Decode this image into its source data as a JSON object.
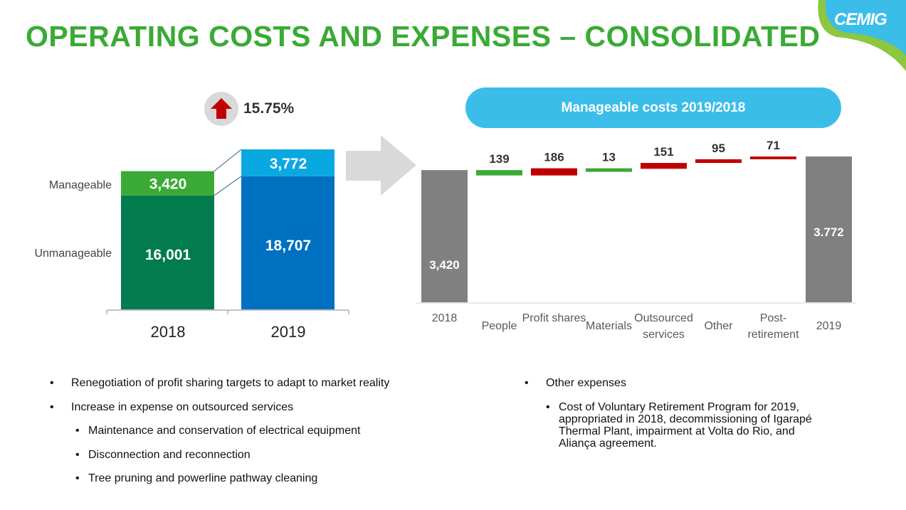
{
  "title": "OPERATING COSTS AND EXPENSES – CONSOLIDATED",
  "logo": {
    "text": "CEMIG"
  },
  "growth": {
    "value": "15.75%",
    "icon": "up-arrow-icon",
    "color": "#c00000"
  },
  "manageable_pill": "Manageable costs  2019/2018",
  "colors": {
    "title": "#3aaa35",
    "manageable_2018": "#3aaa35",
    "unmanageable_2018": "#027b4e",
    "manageable_2019": "#0aa8e0",
    "unmanageable_2019": "#0070c0",
    "increase": "#c00000",
    "decrease": "#3aaa35",
    "total": "#808080"
  },
  "chart_data": [
    {
      "type": "bar",
      "stacked": true,
      "categories": [
        "2018",
        "2019"
      ],
      "series": [
        {
          "name": "Unmanageable",
          "values": [
            16001,
            18707
          ],
          "labels": [
            "16,001",
            "18,707"
          ]
        },
        {
          "name": "Manageable",
          "values": [
            3420,
            3772
          ],
          "labels": [
            "3,420",
            "3,772"
          ]
        }
      ]
    },
    {
      "type": "bar",
      "waterfall": true,
      "categories": [
        "2018",
        "People",
        "Profit shares",
        "Materials",
        "Outsourced services",
        "Other",
        "Post-retirement",
        "2019"
      ],
      "category_lines": [
        [
          "2018"
        ],
        [
          "People"
        ],
        [
          "Profit shares"
        ],
        [
          "Materials"
        ],
        [
          "Outsourced",
          "services"
        ],
        [
          "Other"
        ],
        [
          "Post-",
          "retirement"
        ],
        [
          "2019"
        ]
      ],
      "values": [
        3420,
        -139,
        186,
        -13,
        151,
        95,
        71,
        3772
      ],
      "labels": [
        "3,420",
        "139",
        "186",
        "13",
        "151",
        "95",
        "71",
        "3.772"
      ],
      "kinds": [
        "total",
        "decrease",
        "increase",
        "decrease",
        "increase",
        "increase",
        "increase",
        "total"
      ]
    }
  ],
  "bullets_left": [
    {
      "level": 1,
      "text": "Renegotiation of profit sharing targets to adapt to market reality"
    },
    {
      "level": 1,
      "text": "Increase in expense on outsourced services"
    },
    {
      "level": 2,
      "text": "Maintenance and conservation of electrical equipment"
    },
    {
      "level": 2,
      "text": "Disconnection and reconnection"
    },
    {
      "level": 2,
      "text": "Tree pruning and powerline pathway cleaning"
    }
  ],
  "bullets_right": [
    {
      "level": 1,
      "text": "Other expenses"
    },
    {
      "level": 2,
      "text": "Cost of Voluntary Retirement Program for 2019, appropriated in 2018, decommissioning of Igarapé Thermal Plant, impairment at Volta do Rio, and Aliança agreement."
    }
  ]
}
